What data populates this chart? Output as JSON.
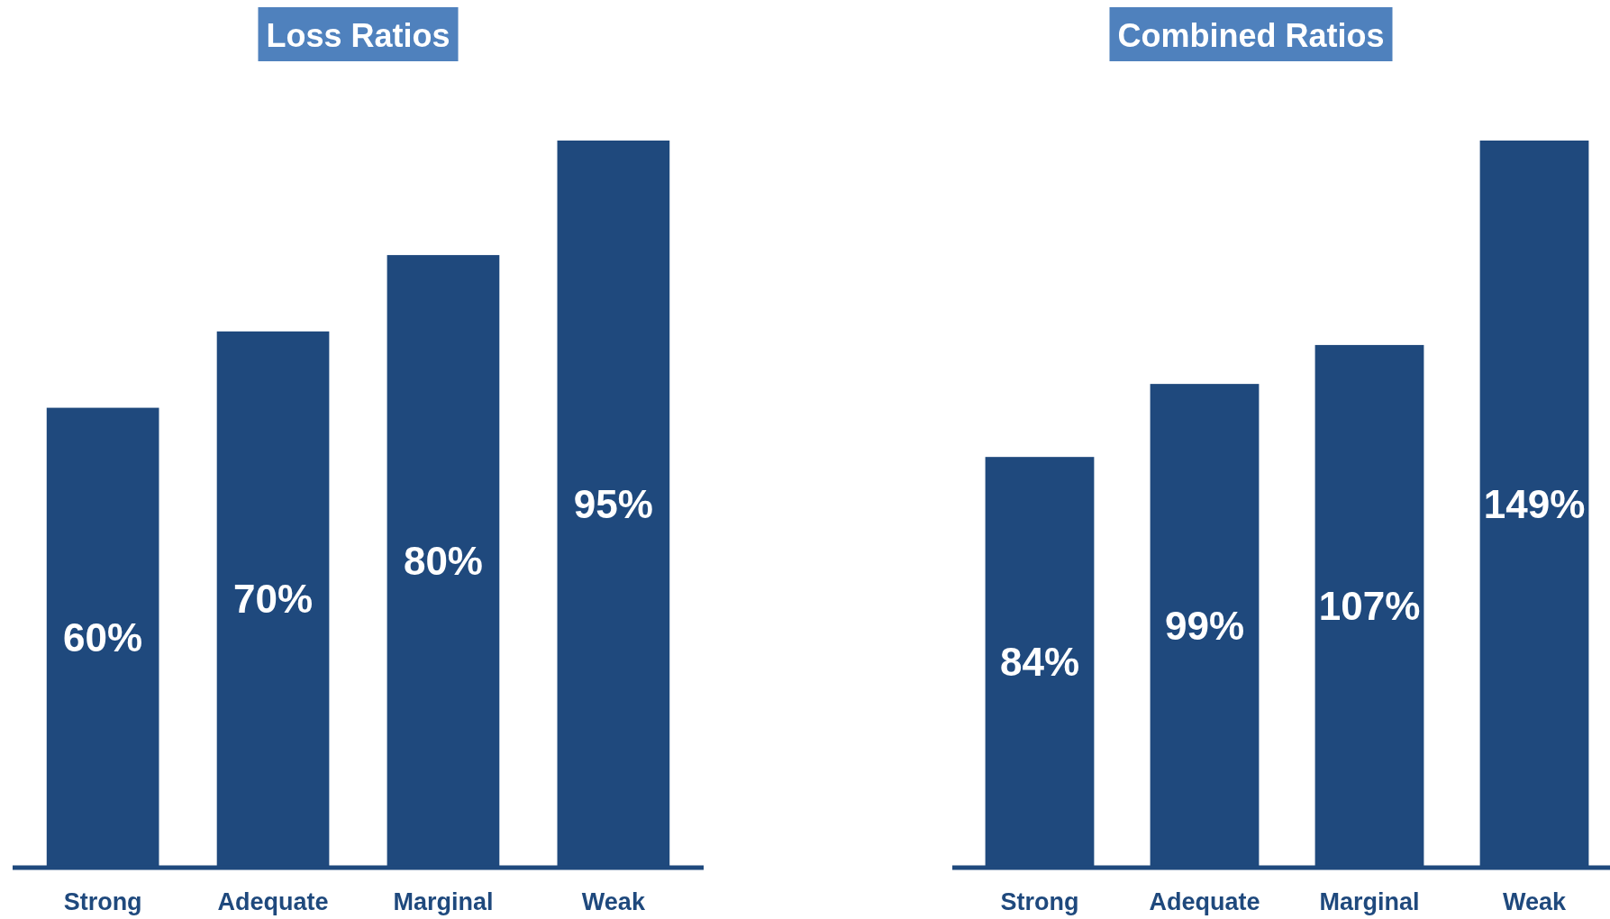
{
  "chart_data": [
    {
      "type": "bar",
      "title": "Loss Ratios",
      "categories": [
        "Strong",
        "Adequate",
        "Marginal",
        "Weak"
      ],
      "values": [
        60,
        70,
        80,
        95
      ],
      "value_labels": [
        "60%",
        "70%",
        "80%",
        "95%"
      ],
      "color": "#1f497d"
    },
    {
      "type": "bar",
      "title": "Combined Ratios",
      "categories": [
        "Strong",
        "Adequate",
        "Marginal",
        "Weak"
      ],
      "values": [
        84,
        99,
        107,
        149
      ],
      "value_labels": [
        "84%",
        "99%",
        "107%",
        "149%"
      ],
      "color": "#1f497d"
    }
  ]
}
